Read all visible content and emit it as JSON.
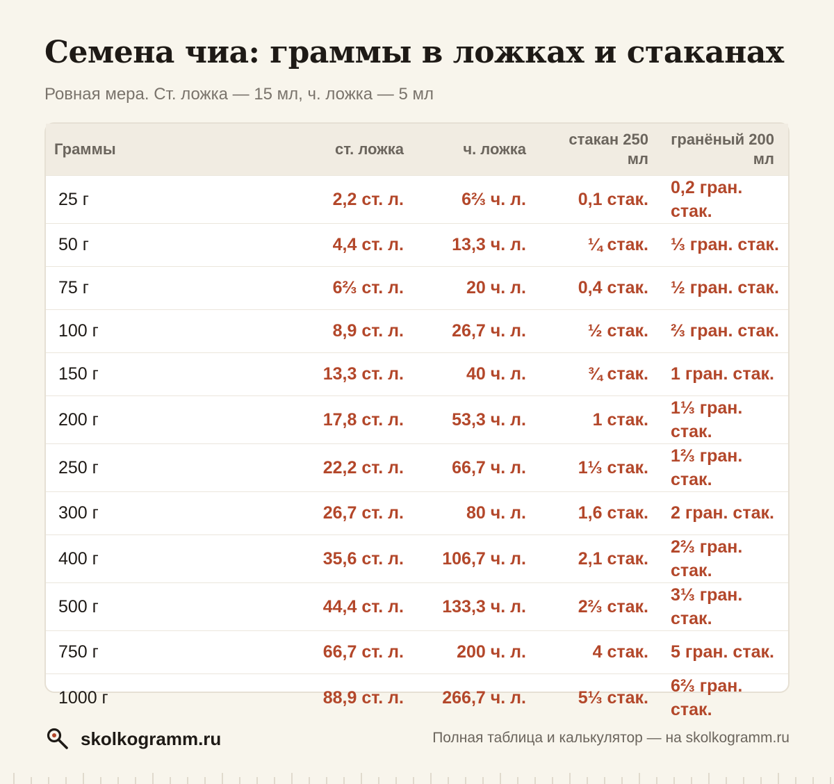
{
  "header": {
    "title": "Семена чиа: граммы в ложках и стаканах",
    "subtitle": "Ровная мера. Ст. ложка — 15 мл, ч. ложка — 5 мл"
  },
  "table": {
    "columns": [
      "Граммы",
      "ст. ложка",
      "ч. ложка",
      "стакан 250 мл",
      "гранёный 200 мл"
    ],
    "rows": [
      [
        "25 г",
        "2,2 ст. л.",
        "6⅔ ч. л.",
        "0,1 стак.",
        "0,2 гран. стак."
      ],
      [
        "50 г",
        "4,4 ст. л.",
        "13,3 ч. л.",
        "¼ стак.",
        "⅓ гран. стак."
      ],
      [
        "75 г",
        "6⅔ ст. л.",
        "20 ч. л.",
        "0,4 стак.",
        "½ гран. стак."
      ],
      [
        "100 г",
        "8,9 ст. л.",
        "26,7 ч. л.",
        "½ стак.",
        "⅔ гран. стак."
      ],
      [
        "150 г",
        "13,3 ст. л.",
        "40 ч. л.",
        "¾ стак.",
        "1 гран. стак."
      ],
      [
        "200 г",
        "17,8 ст. л.",
        "53,3 ч. л.",
        "1 стак.",
        "1⅓ гран. стак."
      ],
      [
        "250 г",
        "22,2 ст. л.",
        "66,7 ч. л.",
        "1⅓ стак.",
        "1⅔ гран. стак."
      ],
      [
        "300 г",
        "26,7 ст. л.",
        "80 ч. л.",
        "1,6 стак.",
        "2 гран. стак."
      ],
      [
        "400 г",
        "35,6 ст. л.",
        "106,7 ч. л.",
        "2,1 стак.",
        "2⅔ гран. стак."
      ],
      [
        "500 г",
        "44,4 ст. л.",
        "133,3 ч. л.",
        "2⅔ стак.",
        "3⅓ гран. стак."
      ],
      [
        "750 г",
        "66,7 ст. л.",
        "200 ч. л.",
        "4 стак.",
        "5 гран. стак."
      ],
      [
        "1000 г",
        "88,9 ст. л.",
        "266,7 ч. л.",
        "5⅓ стак.",
        "6⅔ гран. стак."
      ]
    ]
  },
  "footer": {
    "brand": "skolkogramm.ru",
    "logo_icon": "magnifier-icon",
    "note": "Полная таблица и калькулятор — на skolkogramm.ru"
  },
  "colors": {
    "accent": "#b3472a",
    "background": "#f8f5ec"
  }
}
